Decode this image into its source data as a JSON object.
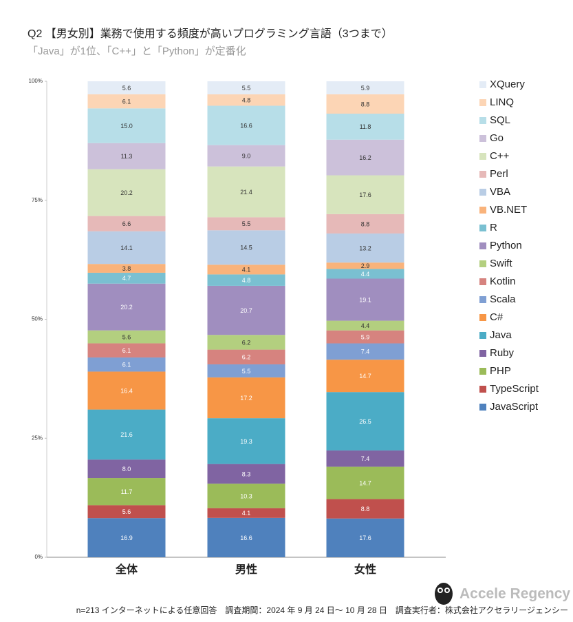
{
  "chart_data": {
    "type": "stacked_percent_bar",
    "title": "Q2 【男女別】業務で使用する頻度が高いプログラミング言語（3つまで）",
    "subtitle": "「Java」が1位、「C++」と「Python」が定番化",
    "categories": [
      "全体",
      "男性",
      "女性"
    ],
    "ylim": [
      0,
      100
    ],
    "yticks": [
      {
        "value": 0,
        "label": "0%"
      },
      {
        "value": 25,
        "label": "25%"
      },
      {
        "value": 50,
        "label": "50%"
      },
      {
        "value": 75,
        "label": "75%"
      },
      {
        "value": 100,
        "label": "100%"
      }
    ],
    "series": [
      {
        "name": "JavaScript",
        "color": "#4f81bd",
        "values": [
          16.9,
          16.6,
          17.6
        ],
        "value_labels": [
          "16.9",
          "16.6",
          "17.6"
        ]
      },
      {
        "name": "TypeScript",
        "color": "#c0504d",
        "values": [
          5.6,
          4.1,
          8.8
        ],
        "value_labels": [
          "5.6",
          "4.1",
          "8.8"
        ]
      },
      {
        "name": "PHP",
        "color": "#9bbb59",
        "values": [
          11.7,
          10.3,
          14.7
        ],
        "value_labels": [
          "11.7",
          "10.3",
          "14.7"
        ]
      },
      {
        "name": "Ruby",
        "color": "#8064a2",
        "values": [
          8.0,
          8.3,
          7.4
        ],
        "value_labels": [
          "8.0",
          "8.3",
          "7.4"
        ]
      },
      {
        "name": "Java",
        "color": "#4bacc6",
        "values": [
          21.6,
          19.3,
          26.5
        ],
        "value_labels": [
          "21.6",
          "19.3",
          "26.5"
        ]
      },
      {
        "name": "C#",
        "color": "#f79646",
        "values": [
          16.4,
          17.2,
          14.7
        ],
        "value_labels": [
          "16.4",
          "17.2",
          "14.7"
        ]
      },
      {
        "name": "Scala",
        "color": "#7f9fd3",
        "values": [
          6.1,
          5.5,
          7.4
        ],
        "value_labels": [
          "6.1",
          "5.5",
          "7.4"
        ]
      },
      {
        "name": "Kotlin",
        "color": "#d6837f",
        "values": [
          6.1,
          6.2,
          5.9
        ],
        "value_labels": [
          "6.1",
          "6.2",
          "5.9"
        ]
      },
      {
        "name": "Swift",
        "color": "#b3cf7f",
        "values": [
          5.6,
          6.2,
          4.4
        ],
        "value_labels": [
          "5.6",
          "6.2",
          "4.4"
        ]
      },
      {
        "name": "Python",
        "color": "#a08ebf",
        "values": [
          20.2,
          20.7,
          19.1
        ],
        "value_labels": [
          "20.2",
          "20.7",
          "19.1"
        ]
      },
      {
        "name": "R",
        "color": "#7ac0d1",
        "values": [
          4.7,
          4.8,
          4.4
        ],
        "value_labels": [
          "4.7",
          "4.8",
          "4.4"
        ]
      },
      {
        "name": "VB.NET",
        "color": "#f9b37b",
        "values": [
          3.8,
          4.1,
          2.9
        ],
        "value_labels": [
          "3.8",
          "4.1",
          "2.9"
        ]
      },
      {
        "name": "VBA",
        "color": "#b9cde5",
        "values": [
          14.1,
          14.5,
          13.2
        ],
        "value_labels": [
          "14.1",
          "14.5",
          "13.2"
        ]
      },
      {
        "name": "Perl",
        "color": "#e6b9b8",
        "values": [
          6.6,
          5.5,
          8.8
        ],
        "value_labels": [
          "6.6",
          "5.5",
          "8.8"
        ]
      },
      {
        "name": "C++",
        "color": "#d7e4bd",
        "values": [
          20.2,
          21.4,
          17.6
        ],
        "value_labels": [
          "20.2",
          "21.4",
          "17.6"
        ]
      },
      {
        "name": "Go",
        "color": "#ccc1da",
        "values": [
          11.3,
          9.0,
          16.2
        ],
        "value_labels": [
          "11.3",
          "9.0",
          "16.2"
        ]
      },
      {
        "name": "SQL",
        "color": "#b7dee8",
        "values": [
          15.0,
          16.6,
          11.8
        ],
        "value_labels": [
          "15.0",
          "16.6",
          "11.8"
        ]
      },
      {
        "name": "LINQ",
        "color": "#fcd5b5",
        "values": [
          6.1,
          4.8,
          8.8
        ],
        "value_labels": [
          "6.1",
          "4.8",
          "8.8"
        ]
      },
      {
        "name": "XQuery",
        "color": "#e4ecf6",
        "values": [
          5.6,
          5.5,
          5.9
        ],
        "value_labels": [
          "5.6",
          "5.5",
          "5.9"
        ]
      }
    ],
    "footnote": "n=213 インターネットによる任意回答　調査期間：2024 年 9 月 24 日～ 10 月 28 日　調査実行者：株式会社アクセラリージェンシー",
    "brand": "Accele Regency"
  }
}
